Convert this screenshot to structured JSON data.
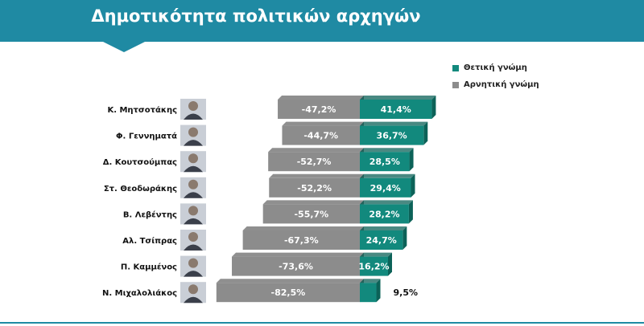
{
  "colors": {
    "header": "#1f8aa3",
    "positive": "#12897d",
    "positive_side": "#0c6258",
    "negative": "#8c8c8c",
    "negative_side": "#6a6a6a"
  },
  "chart_data": {
    "type": "bar",
    "title": "Δημοτικότητα πολιτικών αρχηγών",
    "legend_position": "top-right",
    "categories": [
      "Κ. Μητσοτάκης",
      "Φ. Γεννηματά",
      "Δ. Κουτσούμπας",
      "Στ. Θεοδωράκης",
      "Β. Λεβέντης",
      "Αλ. Τσίπρας",
      "Π. Καμμένος",
      "Ν. Μιχαλολιάκος"
    ],
    "series": [
      {
        "name": "Θετική γνώμη",
        "values": [
          41.4,
          36.7,
          28.5,
          29.4,
          28.2,
          24.7,
          16.2,
          9.5
        ],
        "labels": [
          "41,4%",
          "36,7%",
          "28,5%",
          "29,4%",
          "28,2%",
          "24,7%",
          "16,2%",
          "9,5%"
        ]
      },
      {
        "name": "Αρνητική γνώμη",
        "values": [
          -47.2,
          -44.7,
          -52.7,
          -52.2,
          -55.7,
          -67.3,
          -73.6,
          -82.5
        ],
        "labels": [
          "-47,2%",
          "-44,7%",
          "-52,7%",
          "-52,2%",
          "-55,7%",
          "-67,3%",
          "-73,6%",
          "-82,5%"
        ]
      }
    ],
    "grid": false
  }
}
